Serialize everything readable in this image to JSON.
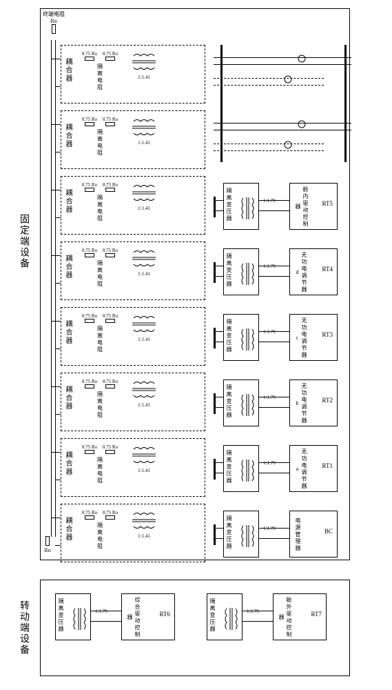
{
  "diagram": {
    "type": "schematic",
    "background_color": "#ffffff",
    "line_color": "#000000",
    "font_family": "SimSun",
    "font_size_small": 8,
    "font_size_label": 10,
    "font_size_section": 14
  },
  "top_resistor": {
    "label": "终端电阻",
    "symbol": "Ro"
  },
  "bottom_resistor": {
    "symbol": "Ro"
  },
  "fixed_section": {
    "label": "固定端设备"
  },
  "rotating_section": {
    "label": "转动端设备"
  },
  "coupler_label": "耦合器",
  "iso_res_label": "隔离电阻",
  "res_value": "0.75 Ro",
  "ratio_1_41": "1:1.41",
  "ratio_1_79": "1:1.79",
  "iso_xfmr_label": "隔离变压器",
  "columns": [
    {
      "device": "电源管理器",
      "code": "BC"
    },
    {
      "device": "无功电调节器a",
      "code": "RT1"
    },
    {
      "device": "无功电调节器b",
      "code": "RT2"
    },
    {
      "device": "无功电调节器c",
      "code": "RT3"
    },
    {
      "device": "无功电调节器d",
      "code": "RT4"
    },
    {
      "device": "舱内驱动控制器",
      "code": "RT5"
    }
  ],
  "rot_columns": [
    {
      "device": "综合驱动控制器",
      "code": "RT6"
    },
    {
      "device": "舱外驱动控制器",
      "code": "RT7"
    }
  ]
}
